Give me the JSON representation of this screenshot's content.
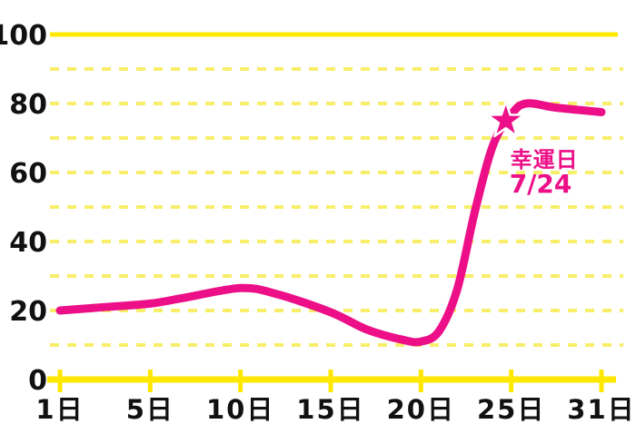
{
  "colors": {
    "background": "#FFFFFF",
    "line_pink": "#EC0F87",
    "axis_yellow": "#FFE800",
    "grid_yellow": "#F8EE6A",
    "label_black": "#111111"
  },
  "chart_data": {
    "type": "line",
    "title": "",
    "x_axis": {
      "tick_days": [
        1,
        5,
        10,
        15,
        20,
        25,
        31
      ],
      "tick_labels": [
        "1日",
        "5日",
        "10日",
        "15日",
        "20日",
        "25日",
        "31日"
      ]
    },
    "y_axis": {
      "ticks": [
        0,
        20,
        40,
        60,
        80,
        100
      ],
      "tick_labels": [
        "0",
        "20",
        "40",
        "60",
        "80",
        "100"
      ],
      "range": [
        0,
        100
      ],
      "grid_interval": 10,
      "grid_style": "dashed",
      "solid_value_lines": [
        100
      ]
    },
    "series": [
      {
        "name": "fortune-curve",
        "color": "#EC0F87",
        "points": [
          [
            1,
            20
          ],
          [
            3,
            21
          ],
          [
            5,
            22
          ],
          [
            7,
            23.8
          ],
          [
            10,
            26.5
          ],
          [
            12,
            24.8
          ],
          [
            15,
            19.5
          ],
          [
            17,
            14.5
          ],
          [
            19,
            11.5
          ],
          [
            20,
            11
          ],
          [
            21,
            14
          ],
          [
            22,
            26
          ],
          [
            23,
            49
          ],
          [
            24,
            68
          ],
          [
            25,
            76.8
          ],
          [
            26,
            80
          ],
          [
            28,
            78.8
          ],
          [
            31,
            77.5
          ]
        ]
      }
    ],
    "annotation": {
      "star_day": 24.7,
      "star_value": 75,
      "label_line1": "幸運日",
      "label_line2": "7/24",
      "color": "#EC0F87"
    },
    "legend": "none",
    "grid_on": true
  }
}
